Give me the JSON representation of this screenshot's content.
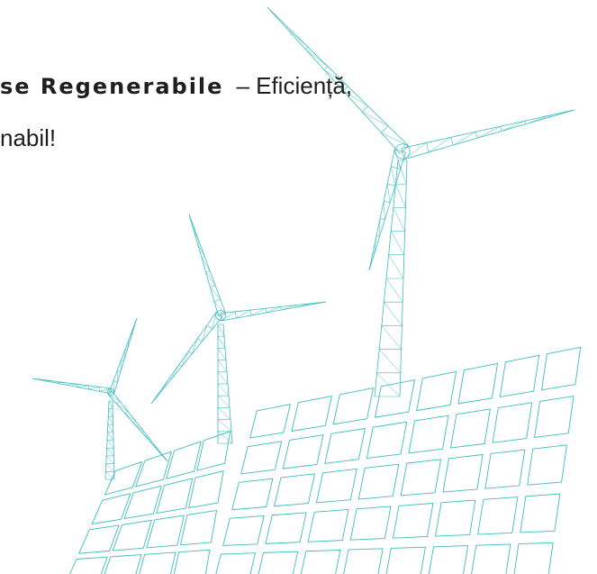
{
  "text": {
    "line1_bold": "se Regenerabile",
    "line1_rest": "– Eficiență,",
    "line2": "nabil!"
  }
}
